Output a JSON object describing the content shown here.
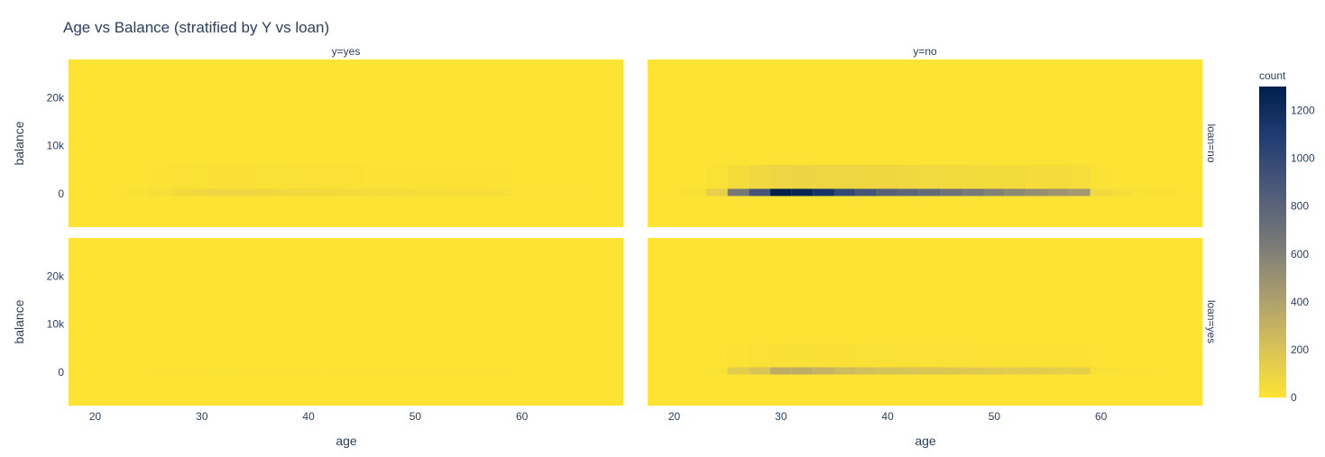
{
  "chart_data": {
    "type": "heatmap",
    "title": "Age vs Balance (stratified by Y vs loan)",
    "xlabel": "age",
    "ylabel": "balance",
    "x_ticks": [
      20,
      30,
      40,
      50,
      60
    ],
    "x_tick_labels": [
      "20",
      "30",
      "40",
      "50",
      "60"
    ],
    "xlim": [
      17.5,
      69.5
    ],
    "y_ticks": [
      0,
      10000,
      20000
    ],
    "y_tick_labels": [
      "0",
      "10k",
      "20k"
    ],
    "ylim": [
      -7000,
      28000
    ],
    "column_facets": [
      "y=yes",
      "y=no"
    ],
    "row_facets": [
      "loan=no",
      "loan=yes"
    ],
    "colorbar": {
      "title": "count",
      "range": [
        0,
        1300
      ],
      "ticks": [
        0,
        200,
        400,
        600,
        800,
        1000,
        1200
      ],
      "tick_labels": [
        "0",
        "200",
        "400",
        "600",
        "800",
        "1000",
        "1200"
      ],
      "colors": [
        "#fde333",
        "#d6c15a",
        "#a89c6f",
        "#777978",
        "#4d5a79",
        "#233d72",
        "#00204c"
      ]
    },
    "x_bins": [
      20,
      22,
      24,
      26,
      28,
      30,
      32,
      34,
      36,
      38,
      40,
      42,
      44,
      46,
      48,
      50,
      52,
      54,
      56,
      58,
      60,
      62,
      64,
      66,
      68
    ],
    "bin_width": 2,
    "panels": [
      {
        "col": "y=yes",
        "row": "loan=no",
        "near_zero": [
          2,
          6,
          14,
          30,
          55,
          75,
          85,
          90,
          80,
          70,
          60,
          55,
          50,
          45,
          42,
          40,
          38,
          35,
          32,
          30,
          8,
          6,
          5,
          4,
          3
        ],
        "upper": [
          0,
          1,
          3,
          6,
          10,
          14,
          16,
          16,
          15,
          14,
          12,
          11,
          10,
          9,
          9,
          8,
          8,
          7,
          7,
          6,
          2,
          1,
          1,
          1,
          0
        ]
      },
      {
        "col": "y=no",
        "row": "loan=no",
        "near_zero": [
          4,
          20,
          120,
          650,
          900,
          1300,
          1250,
          1150,
          1000,
          900,
          820,
          780,
          750,
          700,
          650,
          600,
          560,
          520,
          480,
          450,
          60,
          30,
          15,
          10,
          6
        ],
        "upper": [
          0,
          3,
          15,
          45,
          70,
          90,
          95,
          90,
          85,
          80,
          75,
          70,
          65,
          60,
          55,
          50,
          48,
          45,
          42,
          40,
          6,
          3,
          2,
          1,
          1
        ]
      },
      {
        "col": "y=yes",
        "row": "loan=yes",
        "near_zero": [
          0,
          1,
          3,
          6,
          10,
          13,
          14,
          13,
          12,
          11,
          10,
          9,
          8,
          8,
          7,
          7,
          6,
          5,
          5,
          4,
          1,
          0,
          0,
          0,
          0
        ],
        "upper": [
          0,
          0,
          0,
          1,
          1,
          2,
          2,
          2,
          2,
          1,
          1,
          1,
          1,
          1,
          1,
          1,
          1,
          1,
          0,
          0,
          0,
          0,
          0,
          0,
          0
        ]
      },
      {
        "col": "y=no",
        "row": "loan=yes",
        "near_zero": [
          0,
          3,
          15,
          140,
          200,
          330,
          330,
          300,
          260,
          230,
          210,
          200,
          190,
          180,
          170,
          160,
          150,
          140,
          130,
          120,
          20,
          10,
          5,
          2,
          1
        ],
        "upper": [
          0,
          0,
          2,
          8,
          12,
          18,
          20,
          18,
          16,
          15,
          14,
          13,
          12,
          11,
          10,
          9,
          9,
          8,
          8,
          7,
          2,
          1,
          0,
          0,
          0
        ]
      }
    ]
  }
}
